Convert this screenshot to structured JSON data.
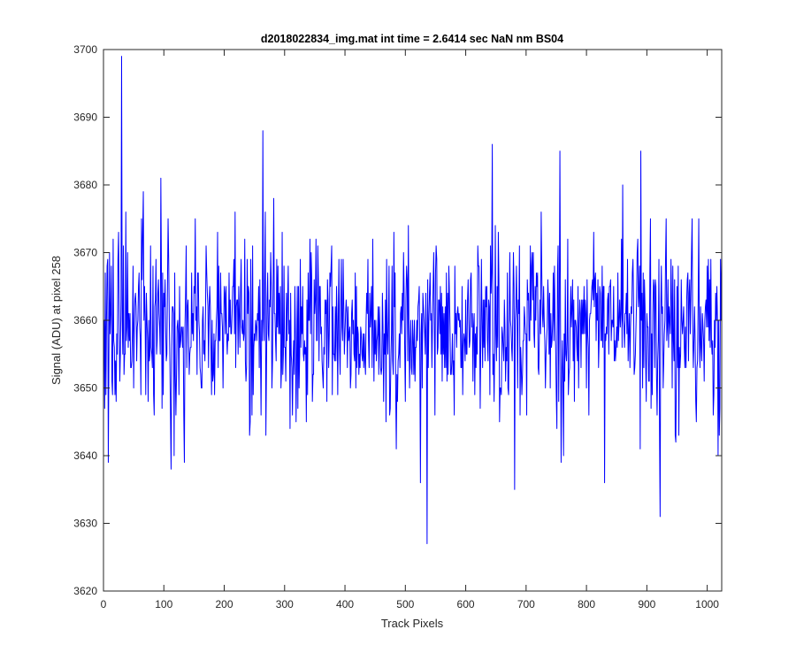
{
  "chart_data": {
    "type": "line",
    "title": "d2018022834_img.mat int time = 2.6414 sec  NaN nm BS04",
    "xlabel": "Track Pixels",
    "ylabel": "Signal (ADU) at pixel 258",
    "xlim": [
      0,
      1024
    ],
    "ylim": [
      3620,
      3700
    ],
    "xticks": [
      0,
      100,
      200,
      300,
      400,
      500,
      600,
      700,
      800,
      900,
      1000
    ],
    "yticks": [
      3620,
      3630,
      3640,
      3650,
      3660,
      3670,
      3680,
      3690,
      3700
    ],
    "grid": false,
    "legend": "none",
    "series": [
      {
        "color": "#0000ff",
        "x_start": 1,
        "x_step": 1,
        "n_points": 1024,
        "mean": 3659,
        "noise_range": [
          3627,
          3699
        ],
        "notable_points": [
          {
            "x": 4,
            "y": 3649
          },
          {
            "x": 8,
            "y": 3639
          },
          {
            "x": 10,
            "y": 3670
          },
          {
            "x": 30,
            "y": 3699
          },
          {
            "x": 37,
            "y": 3676
          },
          {
            "x": 95,
            "y": 3681
          },
          {
            "x": 112,
            "y": 3638
          },
          {
            "x": 117,
            "y": 3640
          },
          {
            "x": 134,
            "y": 3639
          },
          {
            "x": 218,
            "y": 3676
          },
          {
            "x": 264,
            "y": 3688
          },
          {
            "x": 269,
            "y": 3643
          },
          {
            "x": 282,
            "y": 3678
          },
          {
            "x": 525,
            "y": 3636
          },
          {
            "x": 536,
            "y": 3627
          },
          {
            "x": 644,
            "y": 3686
          },
          {
            "x": 681,
            "y": 3635
          },
          {
            "x": 756,
            "y": 3685
          },
          {
            "x": 758,
            "y": 3639
          },
          {
            "x": 830,
            "y": 3636
          },
          {
            "x": 860,
            "y": 3680
          },
          {
            "x": 890,
            "y": 3685
          },
          {
            "x": 922,
            "y": 3631
          },
          {
            "x": 1018,
            "y": 3640
          },
          {
            "x": 1024,
            "y": 3670
          }
        ]
      }
    ]
  }
}
